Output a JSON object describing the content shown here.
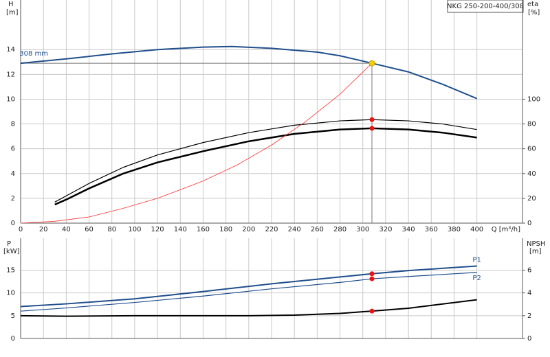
{
  "chart_data": [
    {
      "type": "line",
      "product": "NKG 250-200-400/308",
      "y_label": "H",
      "y_unit": "[m]",
      "y2_label": "eta",
      "y2_unit": "[%]",
      "x_label": "Q [m³/h]",
      "xlim": [
        0,
        440
      ],
      "ylim": [
        0,
        18
      ],
      "y2lim": [
        0,
        180
      ],
      "xticks": [
        0,
        20,
        40,
        60,
        80,
        100,
        120,
        140,
        160,
        180,
        200,
        220,
        240,
        260,
        280,
        300,
        320,
        340,
        360,
        380,
        400
      ],
      "yticks": [
        0,
        2,
        4,
        6,
        8,
        10,
        12,
        14
      ],
      "y2ticks": [
        0,
        20,
        40,
        60,
        80,
        100
      ],
      "grid": true,
      "series": [
        {
          "name": "308 mm",
          "color": "#1f4e8c",
          "width": 2,
          "x": [
            0,
            40,
            80,
            120,
            160,
            185,
            220,
            260,
            280,
            308,
            340,
            370,
            400
          ],
          "values": [
            12.9,
            13.25,
            13.65,
            14.0,
            14.2,
            14.25,
            14.1,
            13.8,
            13.5,
            12.9,
            12.2,
            11.2,
            10.05
          ]
        },
        {
          "color": "#000000",
          "width": 1.2,
          "axis": "y2",
          "x": [
            30,
            40,
            60,
            90,
            120,
            160,
            200,
            240,
            280,
            308,
            340,
            370,
            400
          ],
          "values": [
            17,
            22,
            32,
            45,
            55,
            65,
            73,
            79,
            82.5,
            83.5,
            82.5,
            80,
            75.5
          ]
        },
        {
          "color": "#000000",
          "width": 2.5,
          "axis": "y2",
          "x": [
            30,
            40,
            60,
            90,
            120,
            160,
            200,
            240,
            280,
            308,
            340,
            370,
            400
          ],
          "values": [
            15,
            19,
            28,
            40,
            49,
            58,
            66,
            72,
            75.5,
            76.5,
            75.5,
            73,
            69
          ]
        },
        {
          "color": "#ff3030",
          "width": 0.8,
          "x": [
            0,
            30,
            60,
            90,
            120,
            160,
            190,
            220,
            250,
            280,
            308
          ],
          "values": [
            0,
            0.15,
            0.5,
            1.2,
            2.0,
            3.4,
            4.7,
            6.3,
            8.2,
            10.4,
            12.9
          ]
        }
      ],
      "operating_point": {
        "x": 308,
        "y": 12.9,
        "color": "#f5d000"
      },
      "points": [
        {
          "x": 308,
          "y": 83.5,
          "axis": "y2",
          "color": "#ee1111"
        },
        {
          "x": 308,
          "y": 76.5,
          "axis": "y2",
          "color": "#ee1111"
        }
      ]
    },
    {
      "type": "line",
      "y_label": "P",
      "y_unit": "[kW]",
      "y2_label": "NPSH",
      "y2_unit": "[m]",
      "xlim": [
        0,
        440
      ],
      "ylim": [
        0,
        22
      ],
      "y2lim": [
        0,
        8.8
      ],
      "xticks": [
        0,
        20,
        40,
        60,
        80,
        100,
        120,
        140,
        160,
        180,
        200,
        220,
        240,
        260,
        280,
        300,
        320,
        340,
        360,
        380,
        400
      ],
      "xtick_labels": false,
      "yticks": [
        0,
        5,
        10,
        15
      ],
      "y2ticks": [
        0,
        2,
        4,
        6
      ],
      "grid": true,
      "series": [
        {
          "name": "P1",
          "color": "#1f4e8c",
          "width": 2,
          "x": [
            0,
            40,
            100,
            160,
            220,
            280,
            308,
            340,
            400
          ],
          "values": [
            7,
            7.6,
            8.7,
            10.3,
            12,
            13.5,
            14.2,
            14.9,
            15.9
          ]
        },
        {
          "name": "P2",
          "color": "#1f4e8c",
          "width": 1.2,
          "x": [
            0,
            40,
            100,
            160,
            220,
            280,
            308,
            340,
            400
          ],
          "values": [
            6,
            6.7,
            7.9,
            9.3,
            10.9,
            12.3,
            13.1,
            13.6,
            14.5
          ]
        },
        {
          "color": "#000000",
          "width": 2,
          "axis": "y2",
          "x": [
            0,
            40,
            100,
            200,
            240,
            280,
            308,
            340,
            400
          ],
          "values": [
            2.0,
            1.95,
            2.0,
            2.0,
            2.05,
            2.2,
            2.4,
            2.65,
            3.4
          ]
        }
      ],
      "points": [
        {
          "x": 308,
          "y": 14.2,
          "color": "#ee1111"
        },
        {
          "x": 308,
          "y": 13.1,
          "color": "#ee1111"
        },
        {
          "x": 308,
          "y": 2.4,
          "axis": "y2",
          "color": "#ee1111"
        }
      ]
    }
  ]
}
